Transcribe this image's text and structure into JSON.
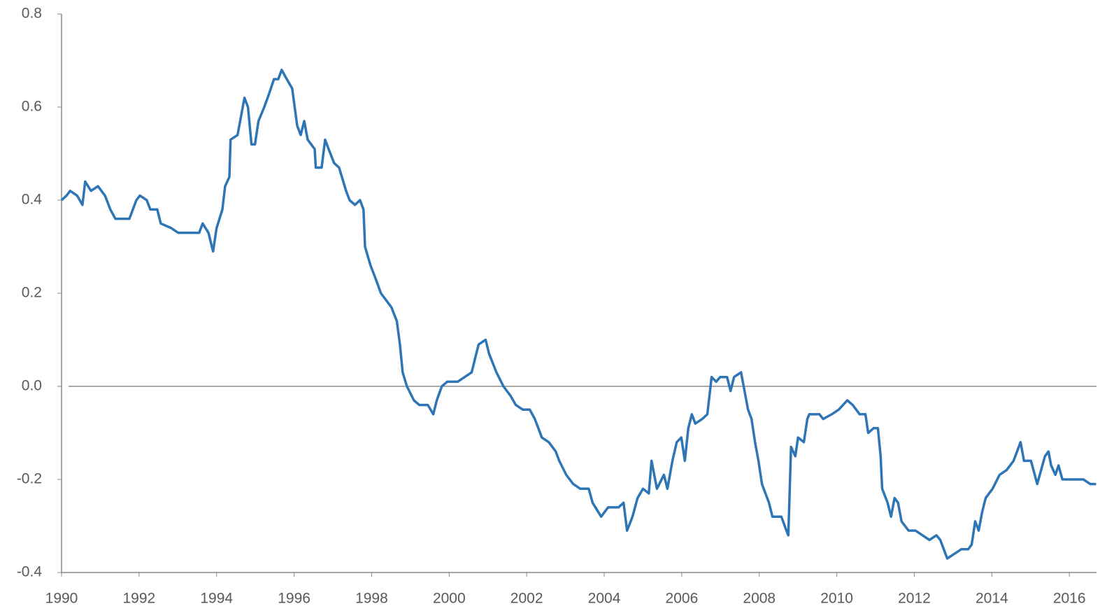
{
  "chart_data": {
    "type": "line",
    "color": "#2e75b6",
    "zero_line": true,
    "xlim": [
      1990,
      2016.7
    ],
    "xticks": [
      1990,
      1992,
      1994,
      1996,
      1998,
      2000,
      2002,
      2004,
      2006,
      2008,
      2010,
      2012,
      2014,
      2016
    ],
    "ylim": [
      -0.4,
      0.8
    ],
    "yticks": [
      0.8,
      0.6,
      0.4,
      0.2,
      {
        "value": 0,
        "label": "0.0"
      },
      -0.2,
      -0.4
    ],
    "x": [
      1990.0,
      1990.13,
      1990.22,
      1990.4,
      1990.54,
      1990.61,
      1990.76,
      1990.94,
      1991.12,
      1991.26,
      1991.39,
      1991.57,
      1991.75,
      1991.93,
      1992.02,
      1992.2,
      1992.29,
      1992.47,
      1992.56,
      1992.83,
      1993.01,
      1993.28,
      1993.55,
      1993.64,
      1993.79,
      1993.91,
      1994.0,
      1994.15,
      1994.22,
      1994.33,
      1994.36,
      1994.54,
      1994.72,
      1994.81,
      1994.9,
      1994.99,
      1995.08,
      1995.23,
      1995.36,
      1995.48,
      1995.59,
      1995.68,
      1995.81,
      1995.95,
      1996.08,
      1996.17,
      1996.26,
      1996.35,
      1996.53,
      1996.56,
      1996.71,
      1996.8,
      1996.89,
      1997.03,
      1997.16,
      1997.34,
      1997.43,
      1997.57,
      1997.7,
      1997.79,
      1997.83,
      1997.97,
      1998.11,
      1998.24,
      1998.42,
      1998.51,
      1998.65,
      1998.73,
      1998.8,
      1998.91,
      1999.09,
      1999.23,
      1999.45,
      1999.59,
      1999.68,
      1999.81,
      1999.95,
      2000.22,
      2000.4,
      2000.58,
      2000.67,
      2000.76,
      2000.94,
      2001.03,
      2001.22,
      2001.4,
      2001.58,
      2001.72,
      2001.9,
      2002.08,
      2002.21,
      2002.3,
      2002.39,
      2002.57,
      2002.75,
      2002.84,
      2003.02,
      2003.2,
      2003.38,
      2003.6,
      2003.7,
      2003.92,
      2004.1,
      2004.37,
      2004.5,
      2004.59,
      2004.73,
      2004.86,
      2005.0,
      2005.15,
      2005.22,
      2005.36,
      2005.54,
      2005.63,
      2005.76,
      2005.87,
      2005.99,
      2006.08,
      2006.17,
      2006.26,
      2006.35,
      2006.53,
      2006.66,
      2006.77,
      2006.89,
      2006.99,
      2007.17,
      2007.26,
      2007.35,
      2007.53,
      2007.62,
      2007.71,
      2007.8,
      2007.89,
      2007.98,
      2008.07,
      2008.25,
      2008.34,
      2008.46,
      2008.57,
      2008.7,
      2008.75,
      2008.82,
      2008.93,
      2009.0,
      2009.15,
      2009.24,
      2009.29,
      2009.42,
      2009.55,
      2009.65,
      2009.87,
      2010.05,
      2010.27,
      2010.41,
      2010.59,
      2010.74,
      2010.81,
      2010.95,
      2011.06,
      2011.13,
      2011.17,
      2011.31,
      2011.4,
      2011.49,
      2011.58,
      2011.67,
      2011.85,
      2012.03,
      2012.21,
      2012.39,
      2012.57,
      2012.67,
      2012.85,
      2013.03,
      2013.21,
      2013.39,
      2013.48,
      2013.57,
      2013.66,
      2013.75,
      2013.84,
      2014.02,
      2014.2,
      2014.38,
      2014.56,
      2014.74,
      2014.83,
      2015.01,
      2015.17,
      2015.37,
      2015.46,
      2015.53,
      2015.64,
      2015.72,
      2015.82,
      2016.0,
      2016.18,
      2016.36,
      2016.54,
      2016.69
    ],
    "values": [
      0.4,
      0.41,
      0.42,
      0.41,
      0.39,
      0.44,
      0.42,
      0.43,
      0.41,
      0.38,
      0.36,
      0.36,
      0.36,
      0.4,
      0.41,
      0.4,
      0.38,
      0.38,
      0.35,
      0.34,
      0.33,
      0.33,
      0.33,
      0.35,
      0.33,
      0.29,
      0.34,
      0.38,
      0.43,
      0.45,
      0.53,
      0.54,
      0.62,
      0.6,
      0.52,
      0.52,
      0.57,
      0.6,
      0.63,
      0.66,
      0.66,
      0.68,
      0.66,
      0.64,
      0.56,
      0.54,
      0.57,
      0.53,
      0.51,
      0.47,
      0.47,
      0.53,
      0.51,
      0.48,
      0.47,
      0.42,
      0.4,
      0.39,
      0.4,
      0.38,
      0.3,
      0.26,
      0.23,
      0.2,
      0.18,
      0.17,
      0.14,
      0.09,
      0.03,
      0,
      -0.03,
      -0.04,
      -0.04,
      -0.06,
      -0.03,
      0,
      0.01,
      0.01,
      0.02,
      0.03,
      0.06,
      0.09,
      0.1,
      0.07,
      0.03,
      0,
      -0.02,
      -0.04,
      -0.05,
      -0.05,
      -0.07,
      -0.09,
      -0.11,
      -0.12,
      -0.14,
      -0.16,
      -0.19,
      -0.21,
      -0.22,
      -0.22,
      -0.25,
      -0.28,
      -0.26,
      -0.26,
      -0.25,
      -0.31,
      -0.28,
      -0.24,
      -0.22,
      -0.23,
      -0.16,
      -0.22,
      -0.19,
      -0.22,
      -0.16,
      -0.12,
      -0.11,
      -0.16,
      -0.09,
      -0.06,
      -0.08,
      -0.07,
      -0.06,
      0.02,
      0.01,
      0.02,
      0.02,
      -0.01,
      0.02,
      0.03,
      -0.01,
      -0.05,
      -0.07,
      -0.12,
      -0.16,
      -0.21,
      -0.25,
      -0.28,
      -0.28,
      -0.28,
      -0.31,
      -0.32,
      -0.13,
      -0.15,
      -0.11,
      -0.12,
      -0.07,
      -0.06,
      -0.06,
      -0.06,
      -0.07,
      -0.06,
      -0.05,
      -0.03,
      -0.04,
      -0.06,
      -0.06,
      -0.1,
      -0.09,
      -0.09,
      -0.15,
      -0.22,
      -0.25,
      -0.28,
      -0.24,
      -0.25,
      -0.29,
      -0.31,
      -0.31,
      -0.32,
      -0.33,
      -0.32,
      -0.33,
      -0.37,
      -0.36,
      -0.35,
      -0.35,
      -0.34,
      -0.29,
      -0.31,
      -0.27,
      -0.24,
      -0.22,
      -0.19,
      -0.18,
      -0.16,
      -0.12,
      -0.16,
      -0.16,
      -0.21,
      -0.15,
      -0.14,
      -0.17,
      -0.19,
      -0.17,
      -0.2,
      -0.2,
      -0.2,
      -0.2,
      -0.21,
      -0.21
    ]
  }
}
